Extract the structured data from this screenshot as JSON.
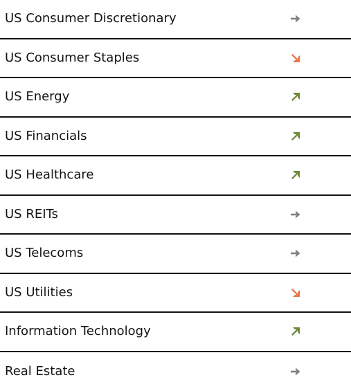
{
  "sectors": [
    {
      "label": "US Consumer Discretionary",
      "trend": "flat",
      "icon": "arrow-right-icon",
      "color": "#7f7f7f"
    },
    {
      "label": "US Consumer Staples",
      "trend": "down",
      "icon": "arrow-down-right-icon",
      "color": "#e8764d"
    },
    {
      "label": "US Energy",
      "trend": "up",
      "icon": "arrow-up-right-icon",
      "color": "#6e8a3a"
    },
    {
      "label": "US Financials",
      "trend": "up",
      "icon": "arrow-up-right-icon",
      "color": "#6e8a3a"
    },
    {
      "label": "US Healthcare",
      "trend": "up",
      "icon": "arrow-up-right-icon",
      "color": "#6e8a3a"
    },
    {
      "label": "US REITs",
      "trend": "flat",
      "icon": "arrow-right-icon",
      "color": "#7f7f7f"
    },
    {
      "label": "US Telecoms",
      "trend": "flat",
      "icon": "arrow-right-icon",
      "color": "#7f7f7f"
    },
    {
      "label": "US Utilities",
      "trend": "down",
      "icon": "arrow-down-right-icon",
      "color": "#e8764d"
    },
    {
      "label": "Information Technology",
      "trend": "up",
      "icon": "arrow-up-right-icon",
      "color": "#6e8a3a"
    },
    {
      "label": "Real Estate",
      "trend": "flat",
      "icon": "arrow-right-icon",
      "color": "#7f7f7f"
    }
  ]
}
